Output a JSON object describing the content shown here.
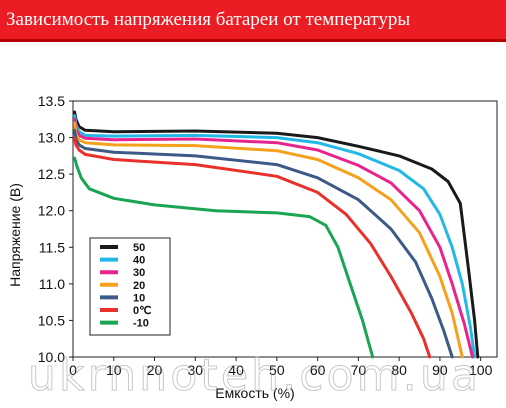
{
  "header": {
    "title": "Зависимость напряжения батареи от температуры"
  },
  "watermark": "ukrnnoteh.com.ua",
  "chart_data": {
    "type": "line",
    "title": "Зависимость напряжения батареи от температуры",
    "xlabel": "Емкость (%)",
    "ylabel": "Напряжение (В)",
    "xlim": [
      0,
      104
    ],
    "ylim": [
      10.0,
      13.5
    ],
    "x_ticks": [
      "0",
      "10",
      "20",
      "30",
      "40",
      "50",
      "60",
      "70",
      "80",
      "90",
      "100"
    ],
    "y_ticks": [
      "10.0",
      "10.5",
      "11.0",
      "11.5",
      "12.0",
      "12.5",
      "13.0",
      "13.5"
    ],
    "grid": false,
    "legend_position": "lower-left",
    "series": [
      {
        "name": "50",
        "color": "#1a1a1a",
        "points": [
          [
            0.4,
            13.35
          ],
          [
            0.7,
            13.25
          ],
          [
            1.5,
            13.15
          ],
          [
            3,
            13.1
          ],
          [
            10,
            13.08
          ],
          [
            30,
            13.09
          ],
          [
            50,
            13.06
          ],
          [
            60,
            13.0
          ],
          [
            70,
            12.88
          ],
          [
            80,
            12.75
          ],
          [
            88,
            12.57
          ],
          [
            92,
            12.4
          ],
          [
            95,
            12.1
          ],
          [
            97,
            11.2
          ],
          [
            98.5,
            10.5
          ],
          [
            99.3,
            10.0
          ]
        ]
      },
      {
        "name": "40",
        "color": "#22b8e8",
        "points": [
          [
            0.4,
            13.3
          ],
          [
            0.7,
            13.18
          ],
          [
            1.5,
            13.08
          ],
          [
            3,
            13.03
          ],
          [
            10,
            13.02
          ],
          [
            30,
            13.03
          ],
          [
            50,
            13.0
          ],
          [
            60,
            12.93
          ],
          [
            70,
            12.78
          ],
          [
            80,
            12.55
          ],
          [
            86,
            12.3
          ],
          [
            90,
            11.95
          ],
          [
            93,
            11.5
          ],
          [
            95.5,
            11.0
          ],
          [
            97.5,
            10.4
          ],
          [
            98.5,
            10.0
          ]
        ]
      },
      {
        "name": "30",
        "color": "#e8238d",
        "points": [
          [
            0.4,
            13.25
          ],
          [
            0.7,
            13.12
          ],
          [
            1.5,
            13.03
          ],
          [
            3,
            12.99
          ],
          [
            10,
            12.97
          ],
          [
            30,
            12.98
          ],
          [
            50,
            12.93
          ],
          [
            60,
            12.83
          ],
          [
            70,
            12.62
          ],
          [
            78,
            12.38
          ],
          [
            85,
            12.0
          ],
          [
            90,
            11.5
          ],
          [
            93,
            11.0
          ],
          [
            96,
            10.45
          ],
          [
            98,
            10.0
          ]
        ]
      },
      {
        "name": "20",
        "color": "#f5a11c",
        "points": [
          [
            0.4,
            13.2
          ],
          [
            0.7,
            13.05
          ],
          [
            1.5,
            12.97
          ],
          [
            3,
            12.93
          ],
          [
            10,
            12.9
          ],
          [
            30,
            12.89
          ],
          [
            50,
            12.82
          ],
          [
            60,
            12.7
          ],
          [
            70,
            12.45
          ],
          [
            78,
            12.15
          ],
          [
            85,
            11.7
          ],
          [
            90,
            11.1
          ],
          [
            93,
            10.6
          ],
          [
            95.5,
            10.0
          ]
        ]
      },
      {
        "name": "10",
        "color": "#3b5a88",
        "points": [
          [
            0.4,
            13.1
          ],
          [
            0.7,
            12.98
          ],
          [
            1.5,
            12.9
          ],
          [
            3,
            12.85
          ],
          [
            10,
            12.8
          ],
          [
            30,
            12.75
          ],
          [
            50,
            12.63
          ],
          [
            60,
            12.45
          ],
          [
            70,
            12.15
          ],
          [
            78,
            11.75
          ],
          [
            84,
            11.3
          ],
          [
            88,
            10.8
          ],
          [
            91,
            10.35
          ],
          [
            93,
            10.0
          ]
        ]
      },
      {
        "name": "0℃",
        "color": "#e8312a",
        "points": [
          [
            0.4,
            13.0
          ],
          [
            0.7,
            12.9
          ],
          [
            1.5,
            12.83
          ],
          [
            3,
            12.77
          ],
          [
            10,
            12.7
          ],
          [
            30,
            12.63
          ],
          [
            50,
            12.47
          ],
          [
            60,
            12.25
          ],
          [
            67,
            11.95
          ],
          [
            73,
            11.55
          ],
          [
            78,
            11.1
          ],
          [
            83,
            10.6
          ],
          [
            86,
            10.25
          ],
          [
            87.5,
            10.0
          ]
        ]
      },
      {
        "name": "-10",
        "color": "#19a552",
        "points": [
          [
            0.4,
            12.72
          ],
          [
            1,
            12.6
          ],
          [
            2,
            12.45
          ],
          [
            4,
            12.3
          ],
          [
            10,
            12.17
          ],
          [
            20,
            12.08
          ],
          [
            35,
            12.0
          ],
          [
            50,
            11.97
          ],
          [
            58,
            11.92
          ],
          [
            62,
            11.8
          ],
          [
            65,
            11.5
          ],
          [
            68,
            11.0
          ],
          [
            71,
            10.5
          ],
          [
            72.5,
            10.2
          ],
          [
            73.5,
            10.0
          ]
        ]
      }
    ]
  }
}
